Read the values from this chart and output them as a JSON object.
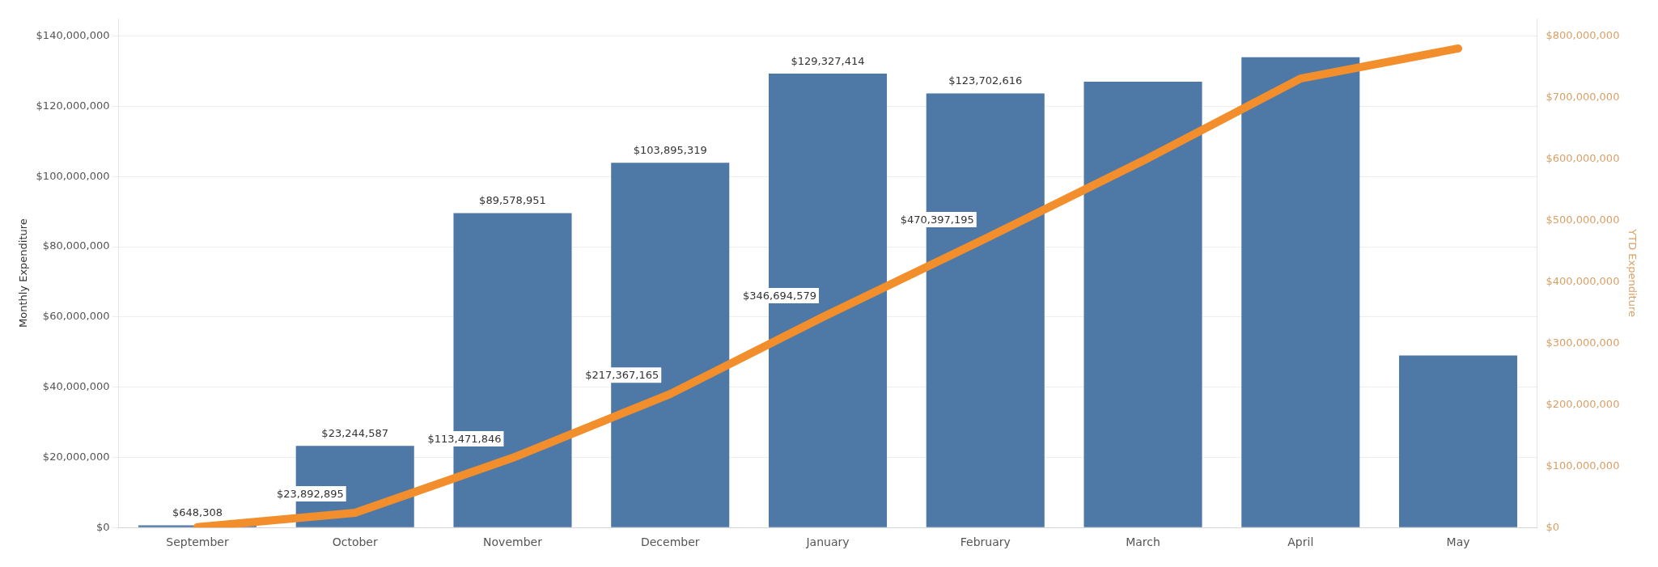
{
  "chart_data": {
    "type": "bar",
    "ylabel": "Monthly Expenditure",
    "y2label": "YTD Expenditure",
    "categories": [
      "September",
      "October",
      "November",
      "December",
      "January",
      "February",
      "March",
      "April",
      "May"
    ],
    "series": [
      {
        "color": "#4e79a7",
        "values": [
          648308,
          23244587,
          89578951,
          103895319,
          129327414,
          123702616,
          127000000,
          134000000,
          49000000
        ],
        "value_labels": [
          "$648,308",
          "$23,244,587",
          "$89,578,951",
          "$103,895,319",
          "$129,327,414",
          "$123,702,616",
          null,
          null,
          null
        ]
      },
      {
        "type": "line",
        "axis": "y2",
        "color": "#f28e2b",
        "values": [
          648308,
          23892895,
          113471846,
          217367165,
          346694579,
          470397195,
          597000000,
          731000000,
          780000000
        ],
        "value_labels": [
          null,
          "$23,892,895",
          "$113,471,846",
          "$217,367,165",
          "$346,694,579",
          "$470,397,195",
          null,
          null,
          null
        ]
      }
    ],
    "ylim": [
      0,
      145000000
    ],
    "yticks": [
      {
        "value": 0,
        "label": "$0"
      },
      {
        "value": 20000000,
        "label": "$20,000,000"
      },
      {
        "value": 40000000,
        "label": "$40,000,000"
      },
      {
        "value": 60000000,
        "label": "$60,000,000"
      },
      {
        "value": 80000000,
        "label": "$80,000,000"
      },
      {
        "value": 100000000,
        "label": "$100,000,000"
      },
      {
        "value": 120000000,
        "label": "$120,000,000"
      },
      {
        "value": 140000000,
        "label": "$140,000,000"
      }
    ],
    "y2lim": [
      0,
      828571429
    ],
    "y2ticks": [
      {
        "value": 0,
        "label": "$0"
      },
      {
        "value": 100000000,
        "label": "$100,000,000"
      },
      {
        "value": 200000000,
        "label": "$200,000,000"
      },
      {
        "value": 300000000,
        "label": "$300,000,000"
      },
      {
        "value": 400000000,
        "label": "$400,000,000"
      },
      {
        "value": 500000000,
        "label": "$500,000,000"
      },
      {
        "value": 600000000,
        "label": "$600,000,000"
      },
      {
        "value": 700000000,
        "label": "$700,000,000"
      },
      {
        "value": 800000000,
        "label": "$800,000,000"
      }
    ],
    "grid": "y",
    "legend": false,
    "marker": "none",
    "line_style": "solid"
  }
}
